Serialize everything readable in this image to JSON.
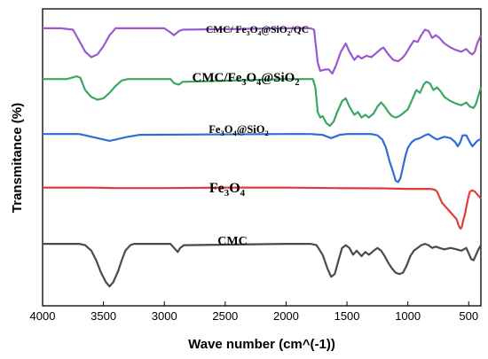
{
  "chart_data": {
    "type": "line",
    "title": "",
    "xlabel": "Wave number (cm^(-1))",
    "ylabel": "Transmitance (%)",
    "xlim": [
      4000,
      400
    ],
    "x_reversed": true,
    "x_ticks": [
      4000,
      3500,
      3000,
      2500,
      2000,
      1500,
      1000,
      500
    ],
    "y_ticks_shown": false,
    "grid": false,
    "legend": "none",
    "annotation_labels": [
      {
        "id": "lbl-qc",
        "text": "CMC/ Fe3O4@SiO2/QC",
        "sub": [
          {
            "t": "CMC/ Fe"
          },
          {
            "t": "3",
            "s": 1
          },
          {
            "t": "O"
          },
          {
            "t": "4",
            "s": 1
          },
          {
            "t": "@SiO"
          },
          {
            "t": "2",
            "s": 1
          },
          {
            "t": "/QC"
          }
        ]
      },
      {
        "id": "lbl-cmcfe",
        "text": "CMC/Fe3O4@SiO2",
        "sub": [
          {
            "t": "CMC/Fe"
          },
          {
            "t": "3",
            "s": 1
          },
          {
            "t": "O"
          },
          {
            "t": "4",
            "s": 1
          },
          {
            "t": "@SiO"
          },
          {
            "t": "2",
            "s": 1
          }
        ]
      },
      {
        "id": "lbl-fesi",
        "text": "Fe3O4@SiO2",
        "sub": [
          {
            "t": "Fe"
          },
          {
            "t": "3",
            "s": 1
          },
          {
            "t": "O"
          },
          {
            "t": "4",
            "s": 1
          },
          {
            "t": "@SiO"
          },
          {
            "t": "2",
            "s": 1
          }
        ]
      },
      {
        "id": "lbl-fe",
        "text": "Fe3O4",
        "sub": [
          {
            "t": "Fe"
          },
          {
            "t": "3",
            "s": 1
          },
          {
            "t": "O"
          },
          {
            "t": "4",
            "s": 1
          }
        ]
      },
      {
        "id": "lbl-cmc",
        "text": "CMC",
        "sub": [
          {
            "t": "CMC"
          }
        ]
      }
    ],
    "series": [
      {
        "key": "qc",
        "color": "#9b59d0",
        "points": [
          [
            4000,
            9.85
          ],
          [
            3850,
            9.85
          ],
          [
            3750,
            9.8
          ],
          [
            3700,
            9.4
          ],
          [
            3650,
            9.0
          ],
          [
            3600,
            8.8
          ],
          [
            3550,
            8.9
          ],
          [
            3500,
            9.2
          ],
          [
            3450,
            9.6
          ],
          [
            3400,
            9.85
          ],
          [
            3000,
            9.85
          ],
          [
            2950,
            9.7
          ],
          [
            2920,
            9.6
          ],
          [
            2880,
            9.75
          ],
          [
            2850,
            9.8
          ],
          [
            2000,
            9.85
          ],
          [
            1800,
            9.85
          ],
          [
            1770,
            9.8
          ],
          [
            1740,
            8.6
          ],
          [
            1720,
            8.3
          ],
          [
            1680,
            8.35
          ],
          [
            1650,
            8.35
          ],
          [
            1620,
            8.2
          ],
          [
            1590,
            8.5
          ],
          [
            1550,
            9.0
          ],
          [
            1510,
            9.3
          ],
          [
            1480,
            9.0
          ],
          [
            1440,
            8.7
          ],
          [
            1410,
            8.85
          ],
          [
            1380,
            8.75
          ],
          [
            1340,
            8.85
          ],
          [
            1300,
            8.8
          ],
          [
            1260,
            8.95
          ],
          [
            1220,
            9.1
          ],
          [
            1200,
            9.15
          ],
          [
            1160,
            8.9
          ],
          [
            1120,
            8.7
          ],
          [
            1080,
            8.65
          ],
          [
            1050,
            8.75
          ],
          [
            1020,
            8.9
          ],
          [
            980,
            9.2
          ],
          [
            950,
            9.4
          ],
          [
            920,
            9.35
          ],
          [
            890,
            9.6
          ],
          [
            860,
            9.8
          ],
          [
            830,
            9.75
          ],
          [
            800,
            9.5
          ],
          [
            770,
            9.6
          ],
          [
            740,
            9.5
          ],
          [
            700,
            9.3
          ],
          [
            650,
            9.15
          ],
          [
            600,
            9.05
          ],
          [
            560,
            9.0
          ],
          [
            520,
            9.1
          ],
          [
            490,
            8.95
          ],
          [
            470,
            8.9
          ],
          [
            450,
            9.0
          ],
          [
            430,
            9.3
          ],
          [
            410,
            9.5
          ],
          [
            400,
            9.6
          ]
        ]
      },
      {
        "key": "cmcfe",
        "color": "#3aa860",
        "points": [
          [
            4000,
            8.0
          ],
          [
            3800,
            8.0
          ],
          [
            3720,
            8.1
          ],
          [
            3690,
            8.05
          ],
          [
            3650,
            7.6
          ],
          [
            3600,
            7.35
          ],
          [
            3550,
            7.25
          ],
          [
            3500,
            7.3
          ],
          [
            3450,
            7.5
          ],
          [
            3400,
            7.75
          ],
          [
            3350,
            7.95
          ],
          [
            3300,
            8.0
          ],
          [
            2950,
            8.0
          ],
          [
            2920,
            7.85
          ],
          [
            2880,
            7.8
          ],
          [
            2850,
            7.9
          ],
          [
            2000,
            8.0
          ],
          [
            1780,
            8.0
          ],
          [
            1760,
            7.7
          ],
          [
            1740,
            6.8
          ],
          [
            1720,
            6.6
          ],
          [
            1700,
            6.65
          ],
          [
            1670,
            6.4
          ],
          [
            1640,
            6.3
          ],
          [
            1610,
            6.45
          ],
          [
            1580,
            6.8
          ],
          [
            1540,
            7.2
          ],
          [
            1510,
            7.3
          ],
          [
            1480,
            7.0
          ],
          [
            1440,
            6.7
          ],
          [
            1410,
            6.8
          ],
          [
            1380,
            6.6
          ],
          [
            1350,
            6.7
          ],
          [
            1320,
            6.6
          ],
          [
            1280,
            6.75
          ],
          [
            1250,
            7.0
          ],
          [
            1220,
            7.15
          ],
          [
            1190,
            7.0
          ],
          [
            1160,
            6.8
          ],
          [
            1130,
            6.65
          ],
          [
            1100,
            6.6
          ],
          [
            1070,
            6.65
          ],
          [
            1040,
            6.75
          ],
          [
            1000,
            6.9
          ],
          [
            960,
            7.3
          ],
          [
            930,
            7.6
          ],
          [
            900,
            7.5
          ],
          [
            870,
            7.8
          ],
          [
            850,
            7.9
          ],
          [
            820,
            7.85
          ],
          [
            790,
            7.6
          ],
          [
            760,
            7.7
          ],
          [
            730,
            7.55
          ],
          [
            700,
            7.35
          ],
          [
            650,
            7.2
          ],
          [
            600,
            7.1
          ],
          [
            560,
            7.05
          ],
          [
            520,
            7.15
          ],
          [
            490,
            7.0
          ],
          [
            460,
            6.95
          ],
          [
            440,
            7.1
          ],
          [
            420,
            7.4
          ],
          [
            400,
            7.7
          ]
        ]
      },
      {
        "key": "fesi",
        "color": "#2b6fd6",
        "points": [
          [
            4000,
            6.0
          ],
          [
            3700,
            6.0
          ],
          [
            3650,
            5.95
          ],
          [
            3550,
            5.85
          ],
          [
            3450,
            5.75
          ],
          [
            3400,
            5.8
          ],
          [
            3300,
            5.9
          ],
          [
            3200,
            5.97
          ],
          [
            2000,
            6.0
          ],
          [
            1800,
            6.0
          ],
          [
            1700,
            5.97
          ],
          [
            1660,
            5.9
          ],
          [
            1630,
            5.85
          ],
          [
            1600,
            5.9
          ],
          [
            1560,
            5.97
          ],
          [
            1500,
            6.0
          ],
          [
            1300,
            6.0
          ],
          [
            1250,
            5.95
          ],
          [
            1210,
            5.8
          ],
          [
            1180,
            5.5
          ],
          [
            1150,
            5.0
          ],
          [
            1120,
            4.6
          ],
          [
            1100,
            4.3
          ],
          [
            1080,
            4.25
          ],
          [
            1060,
            4.4
          ],
          [
            1040,
            4.8
          ],
          [
            1020,
            5.2
          ],
          [
            1000,
            5.5
          ],
          [
            970,
            5.7
          ],
          [
            940,
            5.8
          ],
          [
            900,
            5.85
          ],
          [
            860,
            5.95
          ],
          [
            830,
            6.0
          ],
          [
            800,
            5.9
          ],
          [
            760,
            5.8
          ],
          [
            730,
            5.85
          ],
          [
            700,
            5.9
          ],
          [
            650,
            5.85
          ],
          [
            610,
            5.7
          ],
          [
            590,
            5.55
          ],
          [
            570,
            5.7
          ],
          [
            550,
            5.95
          ],
          [
            520,
            5.95
          ],
          [
            490,
            5.7
          ],
          [
            470,
            5.55
          ],
          [
            450,
            5.65
          ],
          [
            430,
            5.75
          ],
          [
            410,
            5.8
          ],
          [
            400,
            5.8
          ]
        ]
      },
      {
        "key": "fe",
        "color": "#e03c3c",
        "points": [
          [
            4000,
            4.05
          ],
          [
            3600,
            4.05
          ],
          [
            3400,
            4.03
          ],
          [
            3000,
            4.03
          ],
          [
            2500,
            4.05
          ],
          [
            2000,
            4.05
          ],
          [
            1600,
            4.03
          ],
          [
            1200,
            4.02
          ],
          [
            1000,
            4.0
          ],
          [
            900,
            4.0
          ],
          [
            820,
            4.0
          ],
          [
            780,
            3.97
          ],
          [
            760,
            3.9
          ],
          [
            740,
            3.7
          ],
          [
            720,
            3.5
          ],
          [
            700,
            3.4
          ],
          [
            680,
            3.3
          ],
          [
            660,
            3.2
          ],
          [
            640,
            3.1
          ],
          [
            620,
            3.0
          ],
          [
            600,
            2.9
          ],
          [
            585,
            2.7
          ],
          [
            575,
            2.6
          ],
          [
            565,
            2.55
          ],
          [
            555,
            2.65
          ],
          [
            545,
            2.85
          ],
          [
            530,
            3.1
          ],
          [
            515,
            3.45
          ],
          [
            500,
            3.75
          ],
          [
            490,
            3.9
          ],
          [
            470,
            3.95
          ],
          [
            450,
            3.9
          ],
          [
            430,
            3.8
          ],
          [
            410,
            3.7
          ],
          [
            400,
            3.65
          ]
        ]
      },
      {
        "key": "cmc",
        "color": "#4a4a4a",
        "points": [
          [
            4000,
            2.0
          ],
          [
            3700,
            2.0
          ],
          [
            3650,
            1.95
          ],
          [
            3600,
            1.75
          ],
          [
            3560,
            1.4
          ],
          [
            3520,
            0.95
          ],
          [
            3480,
            0.6
          ],
          [
            3450,
            0.45
          ],
          [
            3420,
            0.6
          ],
          [
            3380,
            1.0
          ],
          [
            3350,
            1.4
          ],
          [
            3320,
            1.75
          ],
          [
            3280,
            1.95
          ],
          [
            3250,
            2.0
          ],
          [
            2950,
            2.0
          ],
          [
            2920,
            1.85
          ],
          [
            2890,
            1.7
          ],
          [
            2870,
            1.85
          ],
          [
            2840,
            1.95
          ],
          [
            2000,
            2.0
          ],
          [
            1800,
            2.0
          ],
          [
            1750,
            1.95
          ],
          [
            1700,
            1.6
          ],
          [
            1660,
            1.1
          ],
          [
            1630,
            0.8
          ],
          [
            1600,
            0.9
          ],
          [
            1570,
            1.4
          ],
          [
            1540,
            1.85
          ],
          [
            1510,
            1.95
          ],
          [
            1480,
            1.85
          ],
          [
            1450,
            1.6
          ],
          [
            1420,
            1.75
          ],
          [
            1380,
            1.55
          ],
          [
            1350,
            1.7
          ],
          [
            1320,
            1.6
          ],
          [
            1280,
            1.75
          ],
          [
            1250,
            1.85
          ],
          [
            1220,
            1.75
          ],
          [
            1190,
            1.55
          ],
          [
            1160,
            1.3
          ],
          [
            1130,
            1.1
          ],
          [
            1100,
            0.95
          ],
          [
            1070,
            0.9
          ],
          [
            1040,
            0.95
          ],
          [
            1010,
            1.2
          ],
          [
            980,
            1.55
          ],
          [
            950,
            1.75
          ],
          [
            920,
            1.85
          ],
          [
            890,
            1.95
          ],
          [
            860,
            2.0
          ],
          [
            830,
            1.95
          ],
          [
            800,
            1.85
          ],
          [
            770,
            1.9
          ],
          [
            740,
            1.85
          ],
          [
            700,
            1.8
          ],
          [
            650,
            1.85
          ],
          [
            600,
            1.8
          ],
          [
            560,
            1.75
          ],
          [
            520,
            1.85
          ],
          [
            500,
            1.65
          ],
          [
            480,
            1.45
          ],
          [
            460,
            1.4
          ],
          [
            440,
            1.6
          ],
          [
            420,
            1.8
          ],
          [
            400,
            1.95
          ]
        ]
      }
    ]
  }
}
